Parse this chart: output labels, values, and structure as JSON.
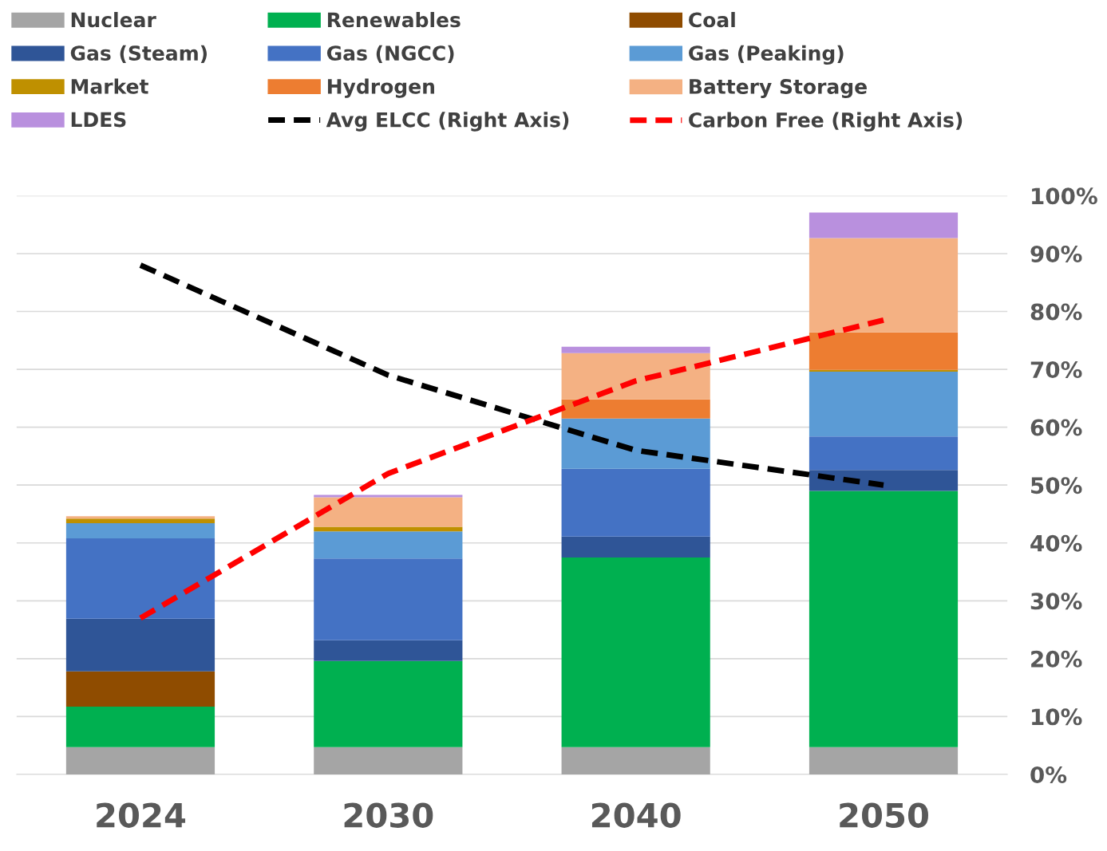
{
  "chart_data": {
    "type": "bar",
    "stacked": true,
    "categories": [
      "2024",
      "2030",
      "2040",
      "2050"
    ],
    "series": [
      {
        "name": "Nuclear",
        "axis": "y2",
        "color": "#a5a5a5",
        "values": [
          4.7,
          4.7,
          4.7,
          4.7
        ]
      },
      {
        "name": "Renewables",
        "axis": "y2",
        "color": "#00b050",
        "values": [
          7.0,
          14.9,
          32.8,
          44.3
        ]
      },
      {
        "name": "Coal",
        "axis": "y2",
        "color": "#8f4c00",
        "values": [
          6.1,
          0,
          0,
          0
        ]
      },
      {
        "name": "Gas (Steam)",
        "axis": "y2",
        "color": "#2f5597",
        "values": [
          9.1,
          3.6,
          3.6,
          3.6
        ]
      },
      {
        "name": "Gas (NGCC)",
        "axis": "y2",
        "color": "#4472c4",
        "values": [
          13.9,
          14.1,
          11.7,
          5.8
        ]
      },
      {
        "name": "Gas (Peaking)",
        "axis": "y2",
        "color": "#5b9bd5",
        "values": [
          2.6,
          4.7,
          8.7,
          11.2
        ]
      },
      {
        "name": "Market",
        "axis": "y2",
        "color": "#bf9000",
        "values": [
          0.8,
          0.8,
          0,
          0.3
        ]
      },
      {
        "name": "Hydrogen",
        "axis": "y2",
        "color": "#ed7d31",
        "values": [
          0,
          0,
          3.3,
          6.5
        ]
      },
      {
        "name": "Battery Storage",
        "axis": "y2",
        "color": "#f4b183",
        "values": [
          0.4,
          5.1,
          8.0,
          16.3
        ]
      },
      {
        "name": "LDES",
        "axis": "y2",
        "color": "#b990de",
        "values": [
          0,
          0.4,
          1.1,
          4.4
        ]
      },
      {
        "name": "Avg ELCC (Right Axis)",
        "type": "line",
        "axis": "y2",
        "color": "#000000",
        "line_style": "dashed",
        "values": [
          88,
          69,
          56,
          50
        ]
      },
      {
        "name": "Carbon Free (Right Axis)",
        "type": "line",
        "axis": "y2",
        "color": "#ff0000",
        "line_style": "dashed",
        "values": [
          27,
          52,
          68,
          78.5
        ]
      }
    ],
    "y2lim": [
      0,
      100
    ],
    "y2ticks": [
      {
        "value": 0,
        "label": "0%"
      },
      {
        "value": 10,
        "label": "10%"
      },
      {
        "value": 20,
        "label": "20%"
      },
      {
        "value": 30,
        "label": "30%"
      },
      {
        "value": 40,
        "label": "40%"
      },
      {
        "value": 50,
        "label": "50%"
      },
      {
        "value": 60,
        "label": "60%"
      },
      {
        "value": 70,
        "label": "70%"
      },
      {
        "value": 80,
        "label": "80%"
      },
      {
        "value": 90,
        "label": "90%"
      },
      {
        "value": 100,
        "label": "100%"
      }
    ],
    "grid": "y2",
    "legend": "top"
  }
}
